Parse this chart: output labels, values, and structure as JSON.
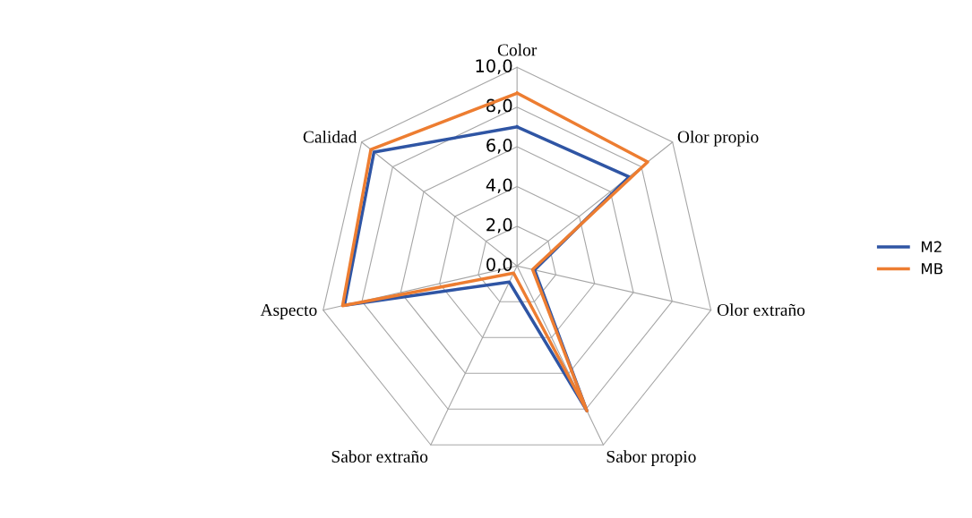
{
  "chart_data": {
    "type": "radar",
    "categories": [
      "Color",
      "Olor propio",
      "Olor extraño",
      "Sabor propio",
      "Sabor extraño",
      "Aspecto",
      "Calidad"
    ],
    "series": [
      {
        "name": "M2",
        "color": "#2f55a4",
        "values": [
          7.0,
          7.2,
          0.9,
          8.1,
          0.9,
          8.9,
          9.2
        ]
      },
      {
        "name": "MB",
        "color": "#ed7d31",
        "values": [
          8.7,
          8.4,
          0.8,
          8.1,
          0.4,
          9.0,
          9.4
        ]
      }
    ],
    "ylim": [
      0,
      10
    ],
    "yticks": [
      {
        "value": 0,
        "label": "0,0"
      },
      {
        "value": 2,
        "label": "2,0"
      },
      {
        "value": 4,
        "label": "4,0"
      },
      {
        "value": 6,
        "label": "6,0"
      },
      {
        "value": 8,
        "label": "8,0"
      },
      {
        "value": 10,
        "label": "10,0"
      }
    ],
    "grid": true,
    "legend": "right"
  }
}
